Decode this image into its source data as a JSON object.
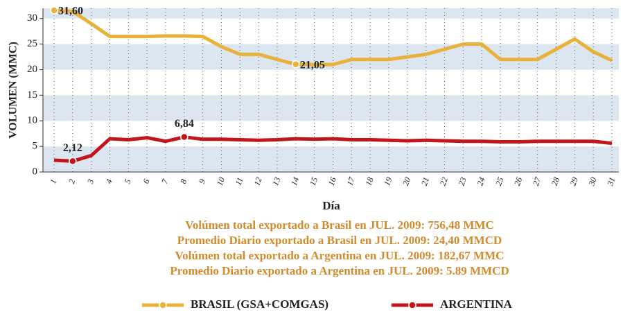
{
  "chart_data": {
    "type": "line",
    "y_label": "VOLUMEN (MMC)",
    "x_label": "Día",
    "categories": [
      "1",
      "2",
      "3",
      "4",
      "5",
      "6",
      "7",
      "8",
      "9",
      "10",
      "11",
      "12",
      "13",
      "14",
      "15",
      "16",
      "17",
      "18",
      "19",
      "20",
      "21",
      "22",
      "23",
      "24",
      "25",
      "26",
      "27",
      "28",
      "29",
      "30",
      "31"
    ],
    "series": [
      {
        "name": "BRASIL (GSA+COMGAS)",
        "color": "#e8b13a",
        "values": [
          31.6,
          31.4,
          29,
          26.5,
          26.5,
          26.5,
          26.6,
          26.6,
          26.5,
          24.5,
          23,
          23,
          22,
          21.05,
          21,
          21,
          22,
          22,
          22,
          22.5,
          23,
          24,
          25,
          25,
          22,
          22,
          22,
          24,
          26,
          23.5,
          21.8
        ],
        "value_labels": [
          "31,60",
          null,
          null,
          null,
          null,
          null,
          null,
          null,
          null,
          null,
          null,
          null,
          null,
          "21,05",
          null,
          null,
          null,
          null,
          null,
          null,
          null,
          null,
          null,
          null,
          null,
          null,
          null,
          null,
          null,
          null,
          null
        ]
      },
      {
        "name": "ARGENTINA",
        "color": "#c0161c",
        "values": [
          2.3,
          2.12,
          3.2,
          6.5,
          6.3,
          6.7,
          6,
          6.84,
          6.4,
          6.4,
          6.3,
          6.2,
          6.3,
          6.5,
          6.4,
          6.5,
          6.3,
          6.3,
          6.2,
          6.1,
          6.2,
          6.1,
          6,
          6,
          5.9,
          5.9,
          6,
          6,
          6,
          6,
          5.6
        ],
        "value_labels": [
          null,
          "2,12",
          null,
          null,
          null,
          null,
          null,
          "6,84",
          null,
          null,
          null,
          null,
          null,
          null,
          null,
          null,
          null,
          null,
          null,
          null,
          null,
          null,
          null,
          null,
          null,
          null,
          null,
          null,
          null,
          null,
          null
        ]
      }
    ],
    "ylim": [
      0,
      32
    ],
    "yticks": [
      0,
      5,
      10,
      15,
      20,
      25,
      30
    ],
    "grid": true,
    "notes": [
      "Volúmen total exportado a Brasil en JUL. 2009: 756,48 MMC",
      "Promedio Diario exportado a Brasil en JUL. 2009: 24,40 MMCD",
      "Volúmen total exportado a Argentina en JUL.  2009: 182,67 MMC",
      "Promedio Diario exportado a Argentina en JUL. 2009: 5.89 MMCD"
    ],
    "legend": "bottom"
  }
}
